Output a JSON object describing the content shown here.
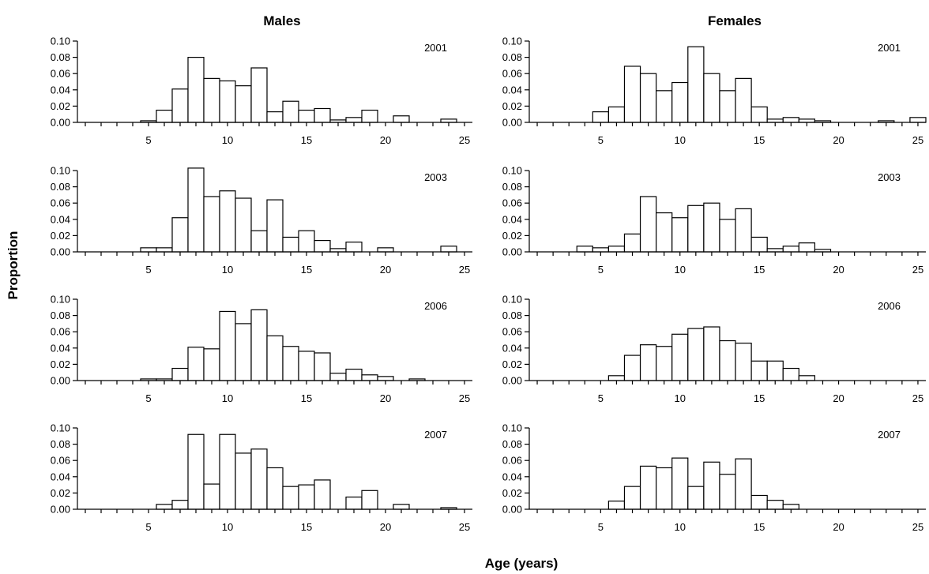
{
  "figure": {
    "ylabel": "Proportion",
    "xlabel": "Age (years)",
    "columns": [
      "Males",
      "Females"
    ]
  },
  "colors": {
    "bar_fill": "#ffffff",
    "bar_stroke": "#000000"
  },
  "chart_data": [
    {
      "type": "bar",
      "panel": "Males",
      "year": "2001",
      "x": [
        1,
        2,
        3,
        4,
        5,
        6,
        7,
        8,
        9,
        10,
        11,
        12,
        13,
        14,
        15,
        16,
        17,
        18,
        19,
        20,
        21,
        22,
        23,
        24,
        25
      ],
      "values": [
        0,
        0,
        0,
        0,
        0.002,
        0.015,
        0.041,
        0.08,
        0.054,
        0.051,
        0.045,
        0.067,
        0.013,
        0.026,
        0.015,
        0.017,
        0.003,
        0.006,
        0.015,
        0,
        0.008,
        0,
        0,
        0.004,
        0
      ],
      "ylim": [
        0,
        0.1
      ],
      "yticks": [
        "0.00",
        "0.02",
        "0.04",
        "0.06",
        "0.08",
        "0.10"
      ],
      "xlim": [
        0.5,
        25.5
      ],
      "xticks": [
        5,
        10,
        15,
        20,
        25
      ]
    },
    {
      "type": "bar",
      "panel": "Females",
      "year": "2001",
      "x": [
        1,
        2,
        3,
        4,
        5,
        6,
        7,
        8,
        9,
        10,
        11,
        12,
        13,
        14,
        15,
        16,
        17,
        18,
        19,
        20,
        21,
        22,
        23,
        24,
        25
      ],
      "values": [
        0,
        0,
        0,
        0,
        0.013,
        0.019,
        0.069,
        0.06,
        0.039,
        0.049,
        0.093,
        0.06,
        0.039,
        0.054,
        0.019,
        0.004,
        0.006,
        0.004,
        0.002,
        0,
        0,
        0,
        0.002,
        0,
        0.006
      ],
      "ylim": [
        0,
        0.1
      ],
      "yticks": [
        "0.00",
        "0.02",
        "0.04",
        "0.06",
        "0.08",
        "0.10"
      ],
      "xlim": [
        0.5,
        25.5
      ],
      "xticks": [
        5,
        10,
        15,
        20,
        25
      ]
    },
    {
      "type": "bar",
      "panel": "Males",
      "year": "2003",
      "x": [
        1,
        2,
        3,
        4,
        5,
        6,
        7,
        8,
        9,
        10,
        11,
        12,
        13,
        14,
        15,
        16,
        17,
        18,
        19,
        20,
        21,
        22,
        23,
        24,
        25
      ],
      "values": [
        0,
        0,
        0,
        0,
        0.005,
        0.005,
        0.042,
        0.103,
        0.068,
        0.075,
        0.066,
        0.026,
        0.064,
        0.018,
        0.026,
        0.014,
        0.004,
        0.012,
        0,
        0.005,
        0,
        0,
        0,
        0.007,
        0
      ],
      "ylim": [
        0,
        0.1
      ],
      "yticks": [
        "0.00",
        "0.02",
        "0.04",
        "0.06",
        "0.08",
        "0.10"
      ],
      "xlim": [
        0.5,
        25.5
      ],
      "xticks": [
        5,
        10,
        15,
        20,
        25
      ]
    },
    {
      "type": "bar",
      "panel": "Females",
      "year": "2003",
      "x": [
        1,
        2,
        3,
        4,
        5,
        6,
        7,
        8,
        9,
        10,
        11,
        12,
        13,
        14,
        15,
        16,
        17,
        18,
        19,
        20,
        21,
        22,
        23,
        24,
        25
      ],
      "values": [
        0,
        0,
        0,
        0.007,
        0.005,
        0.007,
        0.022,
        0.068,
        0.048,
        0.042,
        0.057,
        0.06,
        0.04,
        0.053,
        0.018,
        0.004,
        0.007,
        0.011,
        0.003,
        0,
        0,
        0,
        0,
        0,
        0
      ],
      "ylim": [
        0,
        0.1
      ],
      "yticks": [
        "0.00",
        "0.02",
        "0.04",
        "0.06",
        "0.08",
        "0.10"
      ],
      "xlim": [
        0.5,
        25.5
      ],
      "xticks": [
        5,
        10,
        15,
        20,
        25
      ]
    },
    {
      "type": "bar",
      "panel": "Males",
      "year": "2006",
      "x": [
        1,
        2,
        3,
        4,
        5,
        6,
        7,
        8,
        9,
        10,
        11,
        12,
        13,
        14,
        15,
        16,
        17,
        18,
        19,
        20,
        21,
        22,
        23,
        24,
        25
      ],
      "values": [
        0,
        0,
        0,
        0,
        0.002,
        0.002,
        0.015,
        0.041,
        0.039,
        0.085,
        0.07,
        0.087,
        0.055,
        0.042,
        0.036,
        0.034,
        0.009,
        0.014,
        0.007,
        0.005,
        0,
        0.002,
        0,
        0,
        0
      ],
      "ylim": [
        0,
        0.1
      ],
      "yticks": [
        "0.00",
        "0.02",
        "0.04",
        "0.06",
        "0.08",
        "0.10"
      ],
      "xlim": [
        0.5,
        25.5
      ],
      "xticks": [
        5,
        10,
        15,
        20,
        25
      ]
    },
    {
      "type": "bar",
      "panel": "Females",
      "year": "2006",
      "x": [
        1,
        2,
        3,
        4,
        5,
        6,
        7,
        8,
        9,
        10,
        11,
        12,
        13,
        14,
        15,
        16,
        17,
        18,
        19,
        20,
        21,
        22,
        23,
        24,
        25
      ],
      "values": [
        0,
        0,
        0,
        0,
        0,
        0.006,
        0.031,
        0.044,
        0.042,
        0.057,
        0.064,
        0.066,
        0.049,
        0.046,
        0.024,
        0.024,
        0.015,
        0.006,
        0,
        0,
        0,
        0,
        0,
        0,
        0
      ],
      "ylim": [
        0,
        0.1
      ],
      "yticks": [
        "0.00",
        "0.02",
        "0.04",
        "0.06",
        "0.08",
        "0.10"
      ],
      "xlim": [
        0.5,
        25.5
      ],
      "xticks": [
        5,
        10,
        15,
        20,
        25
      ]
    },
    {
      "type": "bar",
      "panel": "Males",
      "year": "2007",
      "x": [
        1,
        2,
        3,
        4,
        5,
        6,
        7,
        8,
        9,
        10,
        11,
        12,
        13,
        14,
        15,
        16,
        17,
        18,
        19,
        20,
        21,
        22,
        23,
        24,
        25
      ],
      "values": [
        0,
        0,
        0,
        0,
        0,
        0.006,
        0.011,
        0.092,
        0.031,
        0.092,
        0.069,
        0.074,
        0.051,
        0.028,
        0.03,
        0.036,
        0,
        0.015,
        0.023,
        0,
        0.006,
        0,
        0,
        0.002,
        0
      ],
      "ylim": [
        0,
        0.1
      ],
      "yticks": [
        "0.00",
        "0.02",
        "0.04",
        "0.06",
        "0.08",
        "0.10"
      ],
      "xlim": [
        0.5,
        25.5
      ],
      "xticks": [
        5,
        10,
        15,
        20,
        25
      ]
    },
    {
      "type": "bar",
      "panel": "Females",
      "year": "2007",
      "x": [
        1,
        2,
        3,
        4,
        5,
        6,
        7,
        8,
        9,
        10,
        11,
        12,
        13,
        14,
        15,
        16,
        17,
        18,
        19,
        20,
        21,
        22,
        23,
        24,
        25
      ],
      "values": [
        0,
        0,
        0,
        0,
        0,
        0.01,
        0.028,
        0.053,
        0.051,
        0.063,
        0.028,
        0.058,
        0.043,
        0.062,
        0.017,
        0.011,
        0.006,
        0,
        0,
        0,
        0,
        0,
        0,
        0,
        0
      ],
      "ylim": [
        0,
        0.1
      ],
      "yticks": [
        "0.00",
        "0.02",
        "0.04",
        "0.06",
        "0.08",
        "0.10"
      ],
      "xlim": [
        0.5,
        25.5
      ],
      "xticks": [
        5,
        10,
        15,
        20,
        25
      ]
    }
  ]
}
